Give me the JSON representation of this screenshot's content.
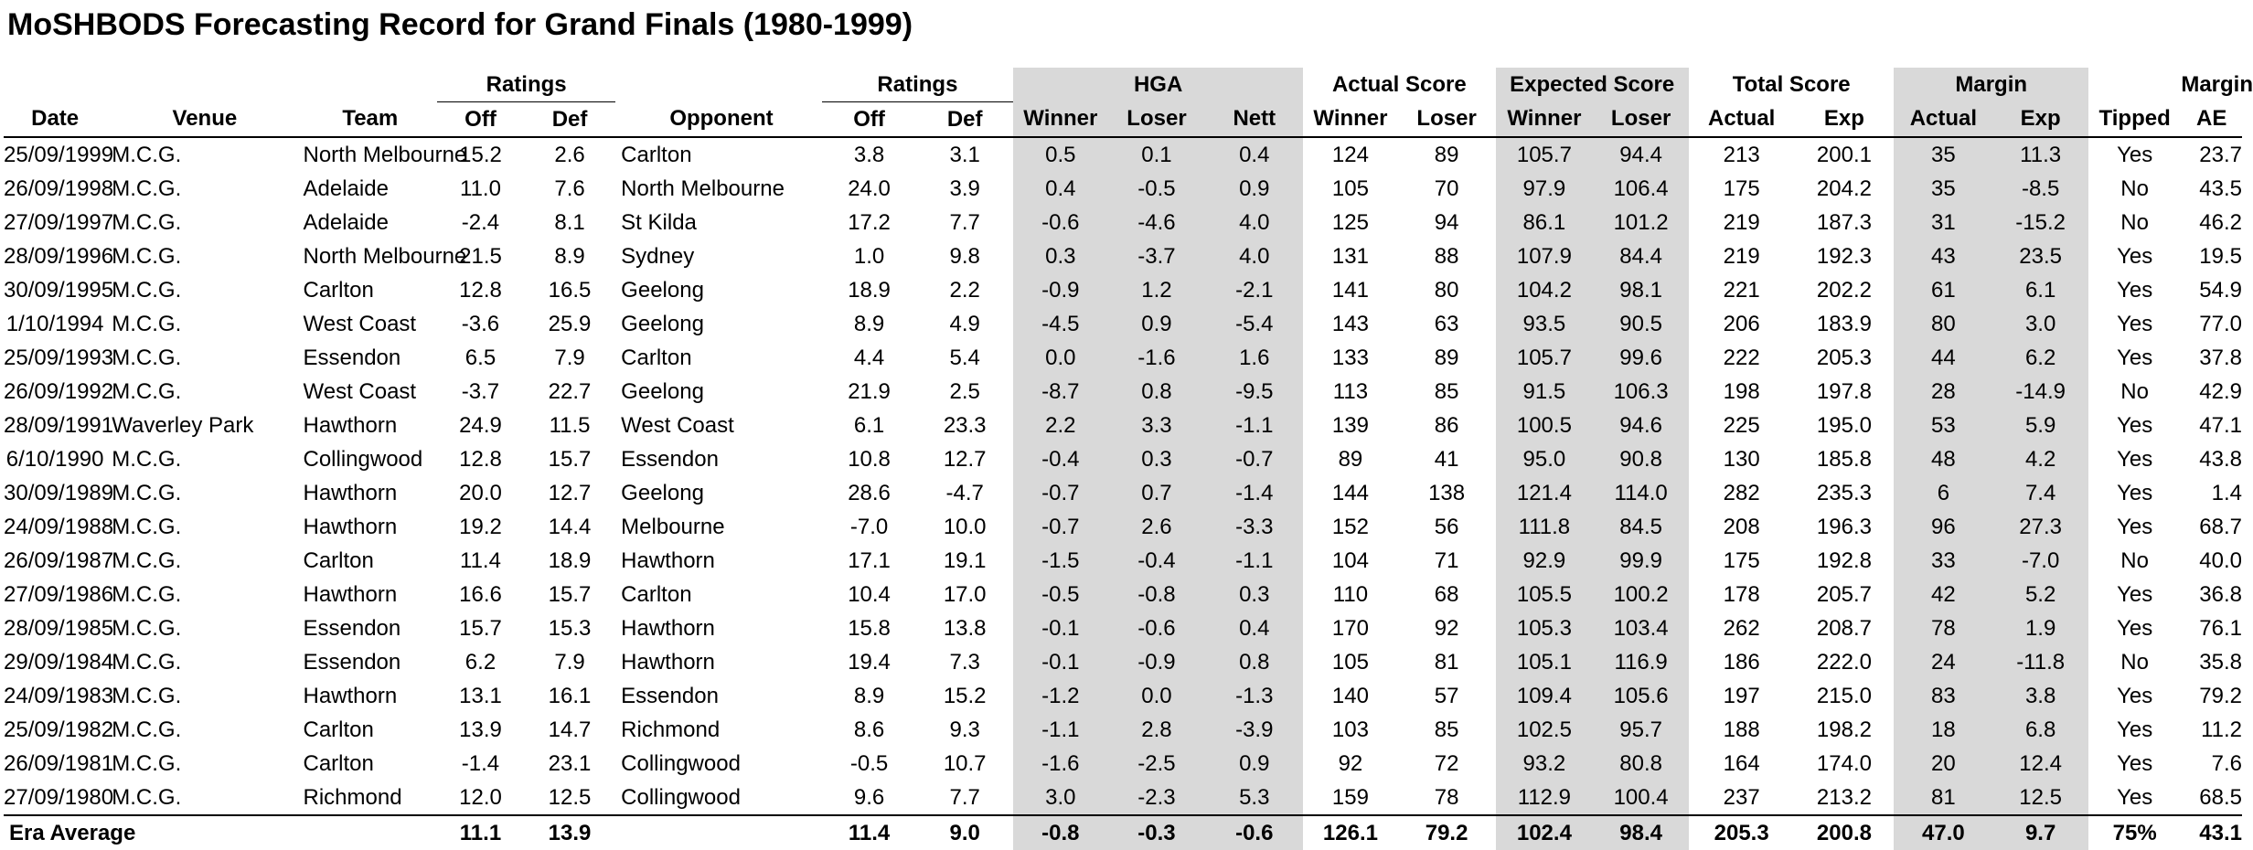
{
  "title": "MoSHBODS Forecasting Record for Grand Finals (1980-1999)",
  "header": {
    "groups": {
      "ratings1": "Ratings",
      "ratings2": "Ratings",
      "hga": "HGA",
      "actual_score": "Actual Score",
      "expected_score": "Expected Score",
      "total_score": "Total Score",
      "margin": "Margin",
      "margin_ae_top": "Margin"
    },
    "columns": {
      "date": "Date",
      "venue": "Venue",
      "team": "Team",
      "off1": "Off",
      "def1": "Def",
      "opponent": "Opponent",
      "off2": "Off",
      "def2": "Def",
      "hga_winner": "Winner",
      "hga_loser": "Loser",
      "hga_nett": "Nett",
      "act_winner": "Winner",
      "act_loser": "Loser",
      "exp_winner": "Winner",
      "exp_loser": "Loser",
      "total_actual": "Actual",
      "total_exp": "Exp",
      "margin_actual": "Actual",
      "margin_exp": "Exp",
      "tipped": "Tipped",
      "margin_ae": "AE"
    }
  },
  "rows": [
    [
      "25/09/1999",
      "M.C.G.",
      "North Melbourne",
      "15.2",
      "2.6",
      "Carlton",
      "3.8",
      "3.1",
      "0.5",
      "0.1",
      "0.4",
      "124",
      "89",
      "105.7",
      "94.4",
      "213",
      "200.1",
      "35",
      "11.3",
      "Yes",
      "23.7"
    ],
    [
      "26/09/1998",
      "M.C.G.",
      "Adelaide",
      "11.0",
      "7.6",
      "North Melbourne",
      "24.0",
      "3.9",
      "0.4",
      "-0.5",
      "0.9",
      "105",
      "70",
      "97.9",
      "106.4",
      "175",
      "204.2",
      "35",
      "-8.5",
      "No",
      "43.5"
    ],
    [
      "27/09/1997",
      "M.C.G.",
      "Adelaide",
      "-2.4",
      "8.1",
      "St Kilda",
      "17.2",
      "7.7",
      "-0.6",
      "-4.6",
      "4.0",
      "125",
      "94",
      "86.1",
      "101.2",
      "219",
      "187.3",
      "31",
      "-15.2",
      "No",
      "46.2"
    ],
    [
      "28/09/1996",
      "M.C.G.",
      "North Melbourne",
      "21.5",
      "8.9",
      "Sydney",
      "1.0",
      "9.8",
      "0.3",
      "-3.7",
      "4.0",
      "131",
      "88",
      "107.9",
      "84.4",
      "219",
      "192.3",
      "43",
      "23.5",
      "Yes",
      "19.5"
    ],
    [
      "30/09/1995",
      "M.C.G.",
      "Carlton",
      "12.8",
      "16.5",
      "Geelong",
      "18.9",
      "2.2",
      "-0.9",
      "1.2",
      "-2.1",
      "141",
      "80",
      "104.2",
      "98.1",
      "221",
      "202.2",
      "61",
      "6.1",
      "Yes",
      "54.9"
    ],
    [
      "1/10/1994",
      "M.C.G.",
      "West Coast",
      "-3.6",
      "25.9",
      "Geelong",
      "8.9",
      "4.9",
      "-4.5",
      "0.9",
      "-5.4",
      "143",
      "63",
      "93.5",
      "90.5",
      "206",
      "183.9",
      "80",
      "3.0",
      "Yes",
      "77.0"
    ],
    [
      "25/09/1993",
      "M.C.G.",
      "Essendon",
      "6.5",
      "7.9",
      "Carlton",
      "4.4",
      "5.4",
      "0.0",
      "-1.6",
      "1.6",
      "133",
      "89",
      "105.7",
      "99.6",
      "222",
      "205.3",
      "44",
      "6.2",
      "Yes",
      "37.8"
    ],
    [
      "26/09/1992",
      "M.C.G.",
      "West Coast",
      "-3.7",
      "22.7",
      "Geelong",
      "21.9",
      "2.5",
      "-8.7",
      "0.8",
      "-9.5",
      "113",
      "85",
      "91.5",
      "106.3",
      "198",
      "197.8",
      "28",
      "-14.9",
      "No",
      "42.9"
    ],
    [
      "28/09/1991",
      "Waverley Park",
      "Hawthorn",
      "24.9",
      "11.5",
      "West Coast",
      "6.1",
      "23.3",
      "2.2",
      "3.3",
      "-1.1",
      "139",
      "86",
      "100.5",
      "94.6",
      "225",
      "195.0",
      "53",
      "5.9",
      "Yes",
      "47.1"
    ],
    [
      "6/10/1990",
      "M.C.G.",
      "Collingwood",
      "12.8",
      "15.7",
      "Essendon",
      "10.8",
      "12.7",
      "-0.4",
      "0.3",
      "-0.7",
      "89",
      "41",
      "95.0",
      "90.8",
      "130",
      "185.8",
      "48",
      "4.2",
      "Yes",
      "43.8"
    ],
    [
      "30/09/1989",
      "M.C.G.",
      "Hawthorn",
      "20.0",
      "12.7",
      "Geelong",
      "28.6",
      "-4.7",
      "-0.7",
      "0.7",
      "-1.4",
      "144",
      "138",
      "121.4",
      "114.0",
      "282",
      "235.3",
      "6",
      "7.4",
      "Yes",
      "1.4"
    ],
    [
      "24/09/1988",
      "M.C.G.",
      "Hawthorn",
      "19.2",
      "14.4",
      "Melbourne",
      "-7.0",
      "10.0",
      "-0.7",
      "2.6",
      "-3.3",
      "152",
      "56",
      "111.8",
      "84.5",
      "208",
      "196.3",
      "96",
      "27.3",
      "Yes",
      "68.7"
    ],
    [
      "26/09/1987",
      "M.C.G.",
      "Carlton",
      "11.4",
      "18.9",
      "Hawthorn",
      "17.1",
      "19.1",
      "-1.5",
      "-0.4",
      "-1.1",
      "104",
      "71",
      "92.9",
      "99.9",
      "175",
      "192.8",
      "33",
      "-7.0",
      "No",
      "40.0"
    ],
    [
      "27/09/1986",
      "M.C.G.",
      "Hawthorn",
      "16.6",
      "15.7",
      "Carlton",
      "10.4",
      "17.0",
      "-0.5",
      "-0.8",
      "0.3",
      "110",
      "68",
      "105.5",
      "100.2",
      "178",
      "205.7",
      "42",
      "5.2",
      "Yes",
      "36.8"
    ],
    [
      "28/09/1985",
      "M.C.G.",
      "Essendon",
      "15.7",
      "15.3",
      "Hawthorn",
      "15.8",
      "13.8",
      "-0.1",
      "-0.6",
      "0.4",
      "170",
      "92",
      "105.3",
      "103.4",
      "262",
      "208.7",
      "78",
      "1.9",
      "Yes",
      "76.1"
    ],
    [
      "29/09/1984",
      "M.C.G.",
      "Essendon",
      "6.2",
      "7.9",
      "Hawthorn",
      "19.4",
      "7.3",
      "-0.1",
      "-0.9",
      "0.8",
      "105",
      "81",
      "105.1",
      "116.9",
      "186",
      "222.0",
      "24",
      "-11.8",
      "No",
      "35.8"
    ],
    [
      "24/09/1983",
      "M.C.G.",
      "Hawthorn",
      "13.1",
      "16.1",
      "Essendon",
      "8.9",
      "15.2",
      "-1.2",
      "0.0",
      "-1.3",
      "140",
      "57",
      "109.4",
      "105.6",
      "197",
      "215.0",
      "83",
      "3.8",
      "Yes",
      "79.2"
    ],
    [
      "25/09/1982",
      "M.C.G.",
      "Carlton",
      "13.9",
      "14.7",
      "Richmond",
      "8.6",
      "9.3",
      "-1.1",
      "2.8",
      "-3.9",
      "103",
      "85",
      "102.5",
      "95.7",
      "188",
      "198.2",
      "18",
      "6.8",
      "Yes",
      "11.2"
    ],
    [
      "26/09/1981",
      "M.C.G.",
      "Carlton",
      "-1.4",
      "23.1",
      "Collingwood",
      "-0.5",
      "10.7",
      "-1.6",
      "-2.5",
      "0.9",
      "92",
      "72",
      "93.2",
      "80.8",
      "164",
      "174.0",
      "20",
      "12.4",
      "Yes",
      "7.6"
    ],
    [
      "27/09/1980",
      "M.C.G.",
      "Richmond",
      "12.0",
      "12.5",
      "Collingwood",
      "9.6",
      "7.7",
      "3.0",
      "-2.3",
      "5.3",
      "159",
      "78",
      "112.9",
      "100.4",
      "237",
      "213.2",
      "81",
      "12.5",
      "Yes",
      "68.5"
    ]
  ],
  "footer": {
    "label": "Era Average",
    "values": [
      "",
      "",
      "11.1",
      "13.9",
      "",
      "11.4",
      "9.0",
      "-0.8",
      "-0.3",
      "-0.6",
      "126.1",
      "79.2",
      "102.4",
      "98.4",
      "205.3",
      "200.8",
      "47.0",
      "9.7",
      "75%",
      "43.1"
    ]
  },
  "colors": {
    "shade": "#d9d9d9"
  }
}
